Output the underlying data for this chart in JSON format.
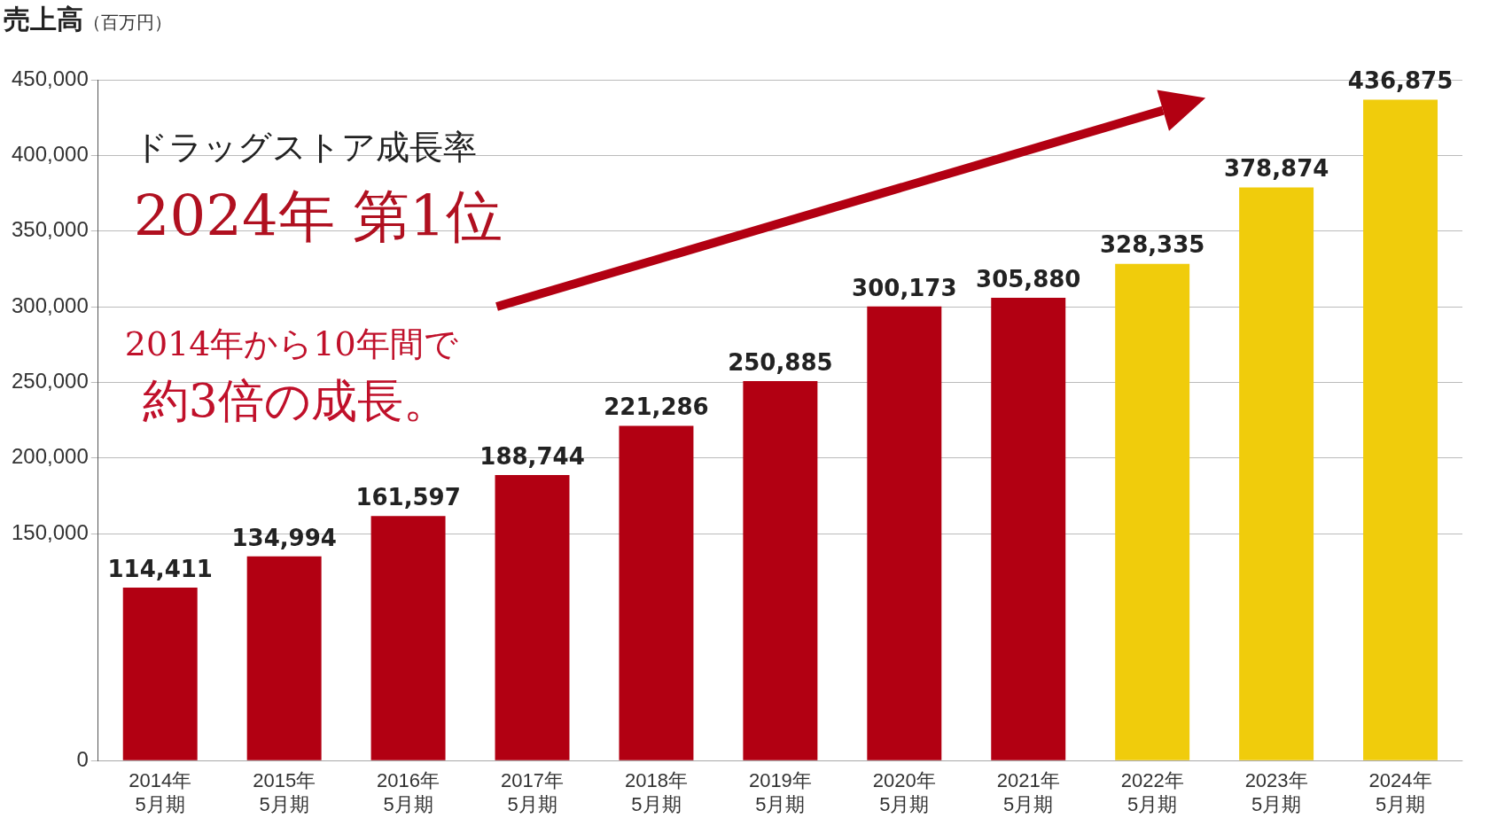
{
  "chart_data": {
    "type": "bar",
    "title": "売上高",
    "subtitle": "（百万円）",
    "categories": [
      "2014年\n5月期",
      "2015年\n5月期",
      "2016年\n5月期",
      "2017年\n5月期",
      "2018年\n5月期",
      "2019年\n5月期",
      "2020年\n5月期",
      "2021年\n5月期",
      "2022年\n5月期",
      "2023年\n5月期",
      "2024年\n5月期"
    ],
    "values": [
      114411,
      134994,
      161597,
      188744,
      221286,
      250885,
      300173,
      305880,
      328335,
      378874,
      436875
    ],
    "colors": [
      "#b20012",
      "#b20012",
      "#b20012",
      "#b20012",
      "#b20012",
      "#b20012",
      "#b20012",
      "#b20012",
      "#f0cc0c",
      "#f0cc0c",
      "#f0cc0c"
    ],
    "value_labels": [
      "114,411",
      "134,994",
      "161,597",
      "188,744",
      "221,286",
      "250,885",
      "300,173",
      "305,880",
      "328,335",
      "378,874",
      "436,875"
    ],
    "ylim": [
      0,
      450000
    ],
    "yticks": [
      0,
      {
        "value": 150000,
        "label": "150,000"
      },
      {
        "value": 200000,
        "label": "200,000"
      },
      {
        "value": 250000,
        "label": "250,000"
      },
      {
        "value": 300000,
        "label": "300,000"
      },
      {
        "value": 350000,
        "label": "350,000"
      },
      {
        "value": 400000,
        "label": "400,000"
      },
      {
        "value": 450000,
        "label": "450,000"
      }
    ],
    "grid": "y",
    "legend": false,
    "annotations": [
      "ドラッグストア成長率",
      "2024年 第1位",
      "2014年から10年間で",
      "約3倍の成長。"
    ]
  }
}
